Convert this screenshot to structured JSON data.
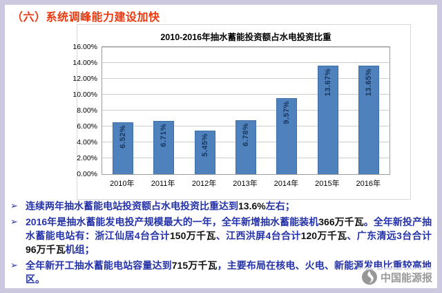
{
  "page": {
    "title": "（六）系统调峰能力建设加快"
  },
  "colors": {
    "frame": "#CBC8DF",
    "title_red": "#E8390F",
    "bar_blue": "#4F81BD",
    "bar_label_navy": "#17375E",
    "bullet_blue": "#2533A8",
    "highlight_black": "#111111"
  },
  "chart_data": {
    "type": "bar",
    "title": "2010-2016年抽水蓄能投资额占水电投资比重",
    "categories": [
      "2010年",
      "2011年",
      "2012年",
      "2013年",
      "2014年",
      "2015年",
      "2016年"
    ],
    "values": [
      6.52,
      6.71,
      5.45,
      6.78,
      9.57,
      13.67,
      13.65
    ],
    "data_labels": [
      "6.52%",
      "6.71%",
      "5.45%",
      "6.78%",
      "9.57%",
      "13.67%",
      "13.65%"
    ],
    "xlabel": "",
    "ylabel": "",
    "ylim": [
      0,
      16
    ],
    "yticks": [
      "0.00%",
      "2.00%",
      "4.00%",
      "6.00%",
      "8.00%",
      "10.00%",
      "12.00%",
      "14.00%",
      "16.00%"
    ],
    "grid": true,
    "legend": "none"
  },
  "bullets": [
    {
      "marker": "➢",
      "segments": [
        {
          "text": "连续两年抽水蓄能电站投资额占水电投资比重达到"
        },
        {
          "text": "13.6%",
          "highlight": true
        },
        {
          "text": "左右；"
        }
      ]
    },
    {
      "marker": "➢",
      "segments": [
        {
          "text": "2016年是抽水蓄能发电投产规模最大的一年，全年新增抽水蓄能装机"
        },
        {
          "text": "366万千瓦",
          "highlight": true
        },
        {
          "text": "。全年新投产抽水蓄能电站有：浙江仙居4台合计"
        },
        {
          "text": "150万千瓦",
          "highlight": true
        },
        {
          "text": "、江西洪屏4台合计"
        },
        {
          "text": "120万千瓦",
          "highlight": true
        },
        {
          "text": "、广东清远3台合计"
        },
        {
          "text": "96万千瓦",
          "highlight": true
        },
        {
          "text": "机组；"
        }
      ]
    },
    {
      "marker": "➢",
      "segments": [
        {
          "text": "全年新开工抽水蓄能电站容量达到"
        },
        {
          "text": "715万千瓦",
          "highlight": true
        },
        {
          "text": "，主要布局在核电、火电、新能源发电比重较高地区。"
        }
      ]
    }
  ],
  "watermark": {
    "text": "中国能源报"
  }
}
